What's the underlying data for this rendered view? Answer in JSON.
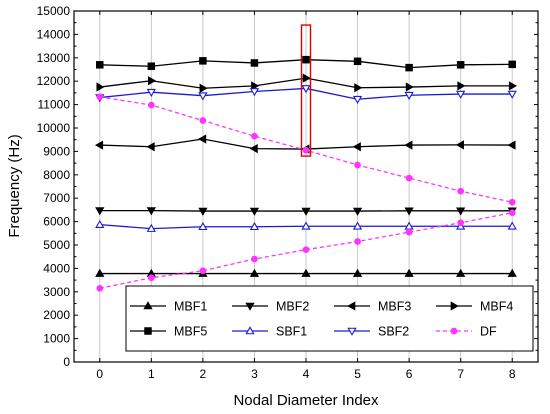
{
  "chart_data": {
    "type": "line",
    "xlabel": "Nodal Diameter Index",
    "ylabel": "Frequency (Hz)",
    "xlim": [
      -0.5,
      8.5
    ],
    "ylim": [
      0,
      15000
    ],
    "x": [
      0,
      1,
      2,
      3,
      4,
      5,
      6,
      7,
      8
    ],
    "xticks": [
      "0",
      "1",
      "2",
      "3",
      "4",
      "5",
      "6",
      "7",
      "8"
    ],
    "yticks": [
      "0",
      "1000",
      "2000",
      "3000",
      "4000",
      "5000",
      "6000",
      "7000",
      "8000",
      "9000",
      "10000",
      "11000",
      "12000",
      "13000",
      "14000",
      "15000"
    ],
    "grid": "vertical",
    "legend_position": "bottom-center",
    "highlight": {
      "x": 4,
      "y_range": [
        8800,
        14400
      ],
      "color": "#e00000"
    },
    "series": [
      {
        "name": "MBF1",
        "marker": "triangle-up",
        "color": "#000000",
        "dashed": false,
        "filled": true,
        "values": [
          3780,
          3780,
          3780,
          3780,
          3780,
          3780,
          3780,
          3780,
          3780
        ]
      },
      {
        "name": "MBF2",
        "marker": "triangle-down",
        "color": "#000000",
        "dashed": false,
        "filled": true,
        "values": [
          6470,
          6470,
          6450,
          6450,
          6450,
          6450,
          6460,
          6460,
          6460
        ]
      },
      {
        "name": "MBF3",
        "marker": "triangle-left",
        "color": "#000000",
        "dashed": false,
        "filled": true,
        "values": [
          9270,
          9200,
          9530,
          9120,
          9100,
          9200,
          9270,
          9280,
          9270
        ]
      },
      {
        "name": "MBF4",
        "marker": "triangle-right",
        "color": "#000000",
        "dashed": false,
        "filled": true,
        "values": [
          11750,
          12020,
          11700,
          11800,
          12130,
          11720,
          11750,
          11800,
          11800
        ]
      },
      {
        "name": "MBF5",
        "marker": "square",
        "color": "#000000",
        "dashed": false,
        "filled": true,
        "values": [
          12700,
          12640,
          12870,
          12780,
          12920,
          12850,
          12580,
          12700,
          12720
        ]
      },
      {
        "name": "SBF1",
        "marker": "triangle-up",
        "color": "#1a1ad6",
        "dashed": false,
        "filled": false,
        "values": [
          5870,
          5700,
          5780,
          5780,
          5800,
          5800,
          5800,
          5800,
          5800
        ]
      },
      {
        "name": "SBF2",
        "marker": "triangle-down",
        "color": "#1a1ad6",
        "dashed": false,
        "filled": false,
        "values": [
          11300,
          11530,
          11380,
          11560,
          11690,
          11230,
          11400,
          11450,
          11450
        ]
      },
      {
        "name": "DF",
        "marker": "circle",
        "color": "#ff33ff",
        "dashed": true,
        "filled": true,
        "values": [
          3150,
          3600,
          3900,
          4400,
          4800,
          5150,
          5550,
          5950,
          6380
        ]
      },
      {
        "name": "",
        "marker": "circle",
        "color": "#ff33ff",
        "dashed": true,
        "filled": true,
        "values": [
          11330,
          10980,
          10320,
          9650,
          9050,
          8420,
          7860,
          7300,
          6830
        ]
      }
    ]
  }
}
